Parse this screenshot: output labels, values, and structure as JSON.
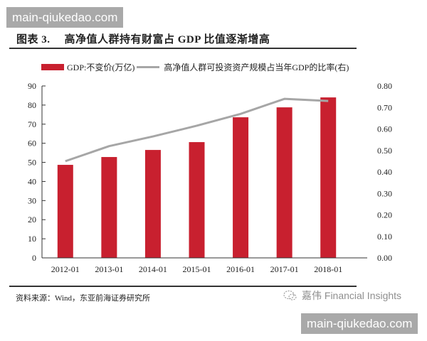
{
  "watermark": {
    "top": "main-qiukedao.com",
    "bottom": "main-qiukedao.com"
  },
  "figure": {
    "number": "图表 3.",
    "title": "高净值人群持有财富占 GDP 比值逐渐增高"
  },
  "legend": {
    "bar": "GDP:不变价(万亿)",
    "line": "高净值人群可投资资产规模占当年GDP的比率(右)"
  },
  "footer": {
    "source": "资料来源：Wind，东亚前海证券研究所",
    "brand": "嘉伟 Financial Insights",
    "brand_icon": "wechat-icon"
  },
  "colors": {
    "bar": "#c8202f",
    "line": "#a6a6a6",
    "axis": "#333333"
  },
  "chart_data": {
    "type": "bar",
    "title": "高净值人群持有财富占 GDP 比值逐渐增高",
    "xlabel": "",
    "ylabel": "GDP:不变价(万亿)",
    "y2label": "高净值人群可投资资产规模占当年GDP的比率(右)",
    "categories": [
      "2012-01",
      "2013-01",
      "2014-01",
      "2015-01",
      "2016-01",
      "2017-01",
      "2018-01"
    ],
    "series": [
      {
        "name": "GDP:不变价(万亿)",
        "type": "bar",
        "axis": "left",
        "values": [
          48.7,
          52.8,
          56.5,
          60.6,
          73.6,
          78.8,
          84.0
        ]
      },
      {
        "name": "高净值人群可投资资产规模占当年GDP的比率(右)",
        "type": "line",
        "axis": "right",
        "values": [
          0.45,
          0.52,
          0.565,
          0.615,
          0.67,
          0.74,
          0.73
        ]
      }
    ],
    "ylim": [
      0,
      90
    ],
    "y2lim": [
      0,
      0.8
    ],
    "yticks": [
      "0",
      "10",
      "20",
      "30",
      "40",
      "50",
      "60",
      "70",
      "80",
      "90"
    ],
    "y2ticks": [
      "0.00",
      "0.10",
      "0.20",
      "0.30",
      "0.40",
      "0.50",
      "0.60",
      "0.70",
      "0.80"
    ],
    "grid": false,
    "legend_position": "top"
  }
}
